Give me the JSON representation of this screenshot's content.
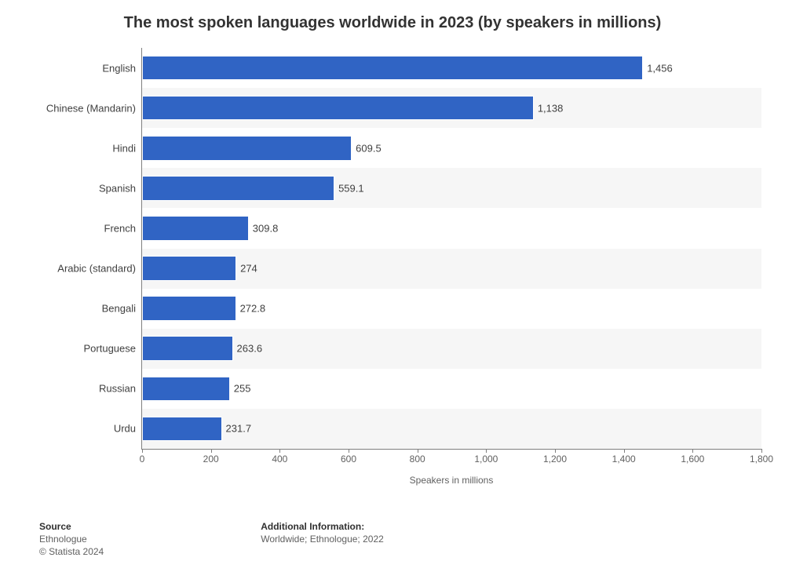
{
  "title": "The most spoken languages worldwide in 2023 (by speakers in millions)",
  "chart": {
    "type": "bar-horizontal",
    "bar_color": "#3064c4",
    "row_colors": [
      "#ffffff",
      "#f6f6f6"
    ],
    "axis_color": "#7f7f7f",
    "label_color": "#404040",
    "label_fontsize": 13,
    "tick_fontsize": 12,
    "xmax": 1800,
    "xticks": [
      {
        "v": 0,
        "label": "0"
      },
      {
        "v": 200,
        "label": "200"
      },
      {
        "v": 400,
        "label": "400"
      },
      {
        "v": 600,
        "label": "600"
      },
      {
        "v": 800,
        "label": "800"
      },
      {
        "v": 1000,
        "label": "1,000"
      },
      {
        "v": 1200,
        "label": "1,200"
      },
      {
        "v": 1400,
        "label": "1,400"
      },
      {
        "v": 1600,
        "label": "1,600"
      },
      {
        "v": 1800,
        "label": "1,800"
      }
    ],
    "xaxis_title": "Speakers in millions",
    "data": [
      {
        "label": "English",
        "value": 1456,
        "value_text": "1,456"
      },
      {
        "label": "Chinese (Mandarin)",
        "value": 1138,
        "value_text": "1,138"
      },
      {
        "label": "Hindi",
        "value": 609.5,
        "value_text": "609.5"
      },
      {
        "label": "Spanish",
        "value": 559.1,
        "value_text": "559.1"
      },
      {
        "label": "French",
        "value": 309.8,
        "value_text": "309.8"
      },
      {
        "label": "Arabic (standard)",
        "value": 274,
        "value_text": "274"
      },
      {
        "label": "Bengali",
        "value": 272.8,
        "value_text": "272.8"
      },
      {
        "label": "Portuguese",
        "value": 263.6,
        "value_text": "263.6"
      },
      {
        "label": "Russian",
        "value": 255,
        "value_text": "255"
      },
      {
        "label": "Urdu",
        "value": 231.7,
        "value_text": "231.7"
      }
    ]
  },
  "footer": {
    "source_heading": "Source",
    "source_name": "Ethnologue",
    "copyright": "© Statista 2024",
    "info_heading": "Additional Information:",
    "info_text": "Worldwide; Ethnologue; 2022"
  }
}
